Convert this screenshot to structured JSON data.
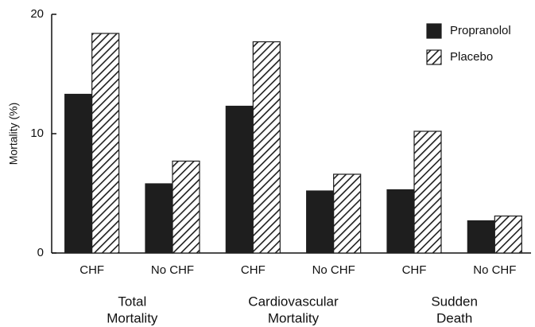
{
  "chart_data": {
    "type": "bar",
    "y_label": "Mortality (%)",
    "categories": [
      "CHF",
      "No CHF",
      "CHF",
      "No CHF",
      "CHF",
      "No CHF"
    ],
    "groups": [
      {
        "lines": [
          "Total",
          "Mortality"
        ]
      },
      {
        "lines": [
          "Cardiovascular",
          "Mortality"
        ]
      },
      {
        "lines": [
          "Sudden",
          "Death"
        ]
      }
    ],
    "series": [
      {
        "name": "Propranolol",
        "color": "#1e1e1e",
        "hatch": false,
        "values": [
          13.3,
          5.8,
          12.3,
          5.2,
          5.3,
          2.7
        ]
      },
      {
        "name": "Placebo",
        "color": "#1e1e1e",
        "hatch": true,
        "values": [
          18.4,
          7.7,
          17.7,
          6.6,
          10.2,
          3.1
        ]
      }
    ],
    "ylim": [
      0,
      20
    ],
    "yticks": [
      0,
      10,
      20
    ],
    "grid": false,
    "legend": "top-right"
  }
}
